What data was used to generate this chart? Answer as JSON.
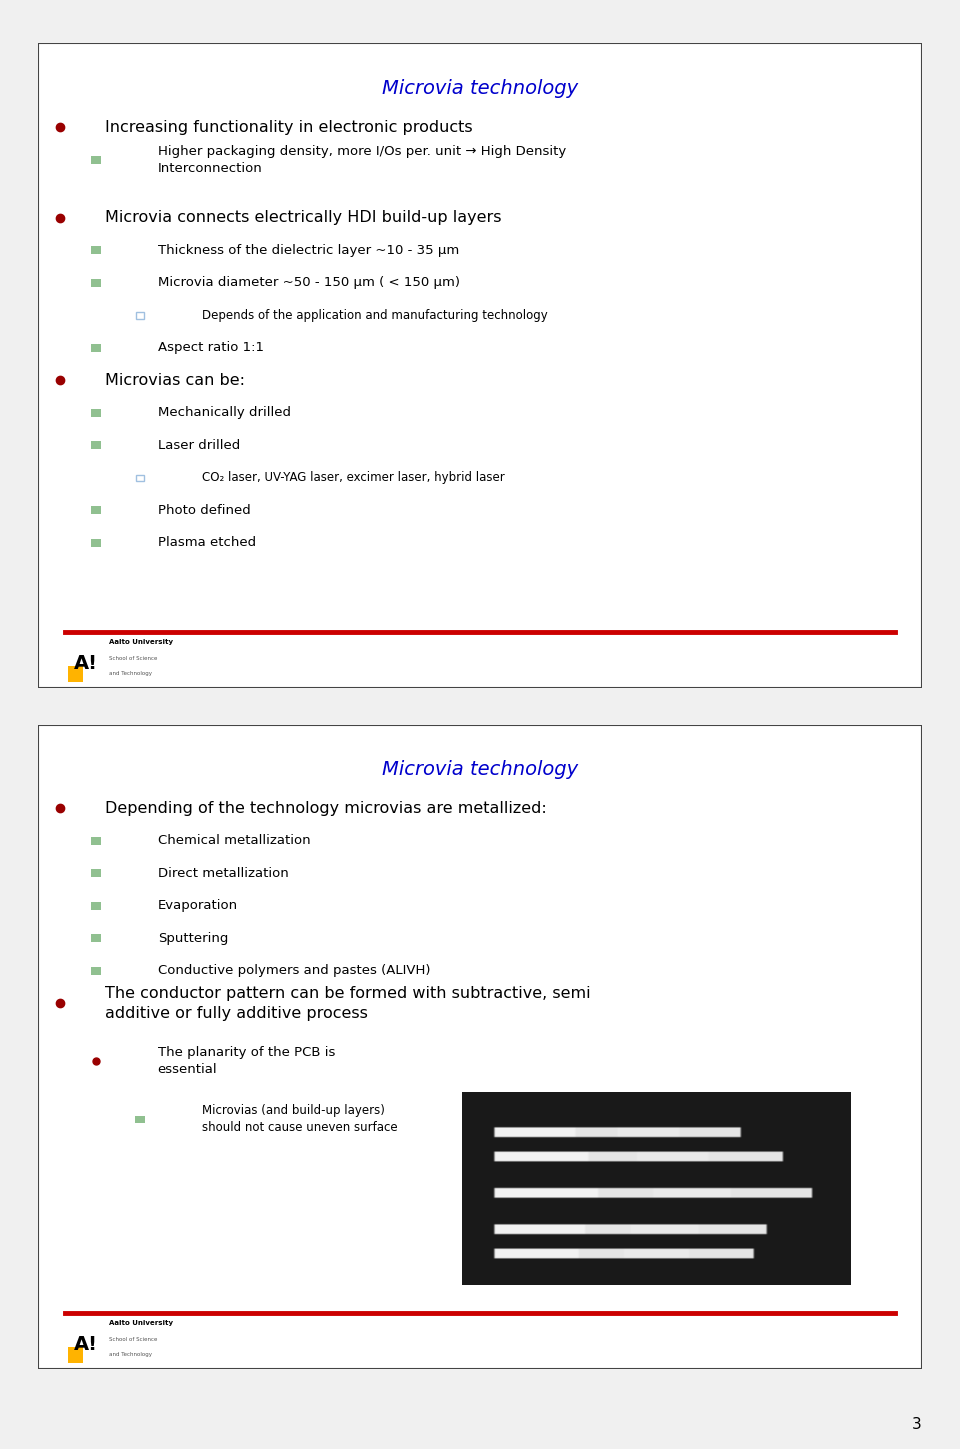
{
  "bg_color": "#f0f0f0",
  "slide_bg": "#ffffff",
  "title_color": "#0000cc",
  "text_color": "#000000",
  "bullet_color": "#990000",
  "sub_bullet_color": "#90c090",
  "sub2_bullet_color": "#a0c0e0",
  "red_line_color": "#cc0000",
  "slide1": {
    "title": "Microvia technology",
    "bullets": [
      {
        "level": 0,
        "text": "Increasing functionality in electronic products",
        "marker": "bullet"
      },
      {
        "level": 1,
        "text": "Higher packaging density, more I/Os per. unit → High Density\nInterconnection",
        "marker": "square"
      },
      {
        "level": 0,
        "text": "Microvia connects electrically HDI build-up layers",
        "marker": "bullet"
      },
      {
        "level": 1,
        "text": "Thickness of the dielectric layer ~10 - 35 μm",
        "marker": "square"
      },
      {
        "level": 1,
        "text": "Microvia diameter ~50 - 150 μm ( < 150 μm)",
        "marker": "square"
      },
      {
        "level": 2,
        "text": "Depends of the application and manufacturing technology",
        "marker": "smallsquare"
      },
      {
        "level": 1,
        "text": "Aspect ratio 1:1",
        "marker": "square"
      },
      {
        "level": 0,
        "text": "Microvias can be:",
        "marker": "bullet"
      },
      {
        "level": 1,
        "text": "Mechanically drilled",
        "marker": "square"
      },
      {
        "level": 1,
        "text": "Laser drilled",
        "marker": "square"
      },
      {
        "level": 2,
        "text": "CO₂ laser, UV-YAG laser, excimer laser, hybrid laser",
        "marker": "smallsquare"
      },
      {
        "level": 1,
        "text": "Photo defined",
        "marker": "square"
      },
      {
        "level": 1,
        "text": "Plasma etched",
        "marker": "square"
      }
    ]
  },
  "slide2": {
    "title": "Microvia technology",
    "bullets": [
      {
        "level": 0,
        "text": "Depending of the technology microvias are metallized:",
        "marker": "bullet"
      },
      {
        "level": 1,
        "text": "Chemical metallization",
        "marker": "square"
      },
      {
        "level": 1,
        "text": "Direct metallization",
        "marker": "square"
      },
      {
        "level": 1,
        "text": "Evaporation",
        "marker": "square"
      },
      {
        "level": 1,
        "text": "Sputtering",
        "marker": "square"
      },
      {
        "level": 1,
        "text": "Conductive polymers and pastes (ALIVH)",
        "marker": "square"
      },
      {
        "level": 0,
        "text": "The conductor pattern can be formed with subtractive, semi\nadditive or fully additive process",
        "marker": "bullet"
      },
      {
        "level": 1,
        "text": "The planarity of the PCB is\nessential",
        "marker": "bullet2"
      },
      {
        "level": 2,
        "text": "Microvias (and build-up layers)\nshould not cause uneven surface",
        "marker": "square"
      }
    ]
  },
  "page_number": "3",
  "font_family": "DejaVu Sans"
}
